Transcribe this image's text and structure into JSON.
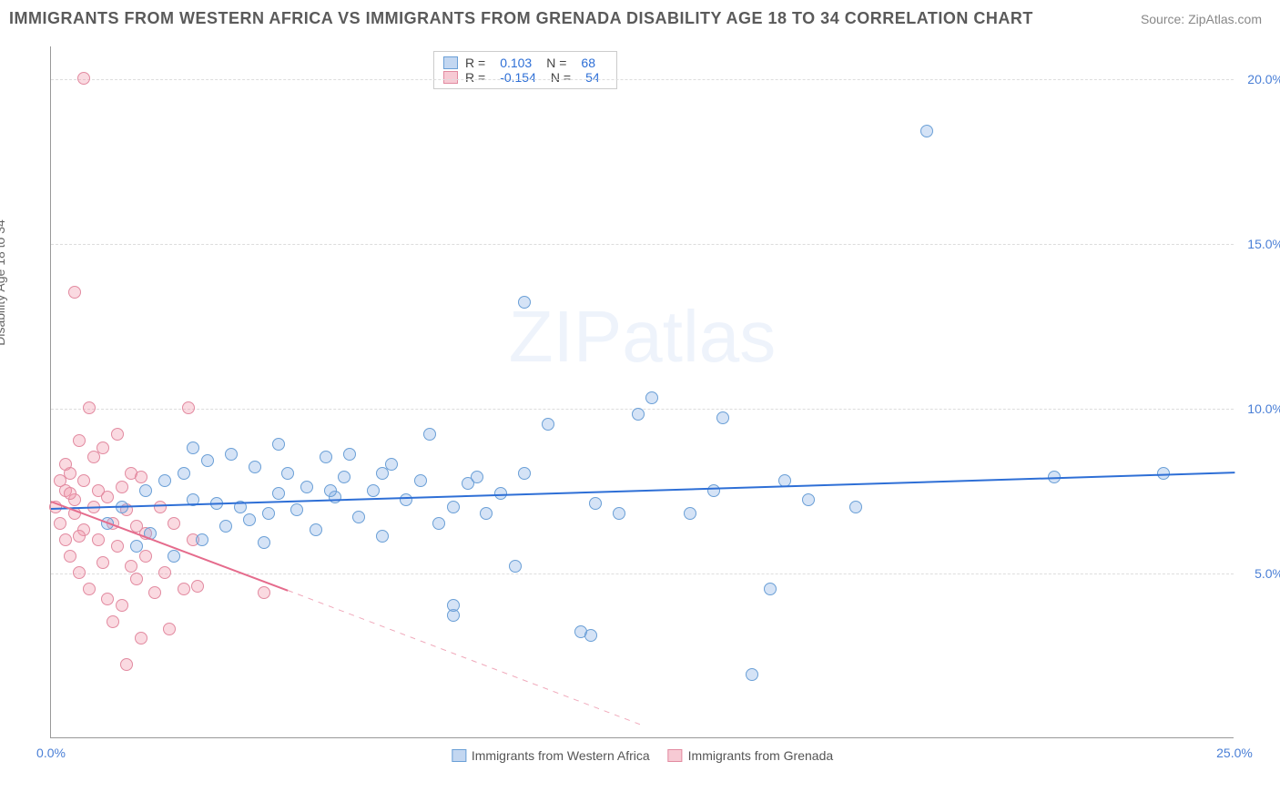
{
  "header": {
    "title": "IMMIGRANTS FROM WESTERN AFRICA VS IMMIGRANTS FROM GRENADA DISABILITY AGE 18 TO 34 CORRELATION CHART",
    "source": "Source: ZipAtlas.com"
  },
  "chart": {
    "type": "scatter",
    "y_axis_label": "Disability Age 18 to 34",
    "watermark": "ZIPatlas",
    "background_color": "#ffffff",
    "grid_color": "#dddddd",
    "axis_color": "#999999",
    "xlim": [
      0,
      25
    ],
    "ylim": [
      0,
      21
    ],
    "y_gridlines": [
      5,
      10,
      15,
      20
    ],
    "y_tick_labels": [
      "5.0%",
      "10.0%",
      "15.0%",
      "20.0%"
    ],
    "x_ticks": [
      0,
      25
    ],
    "x_tick_labels": [
      "0.0%",
      "25.0%"
    ],
    "tick_label_color": "#4a7fd6",
    "tick_fontsize": 14,
    "title_fontsize": 18,
    "title_color": "#5a5a5a",
    "point_radius": 7,
    "series": {
      "blue": {
        "label": "Immigrants from Western Africa",
        "fill": "rgba(135,176,228,0.35)",
        "stroke": "#6a9fd6",
        "trend_color": "#2e6fd6",
        "trend": {
          "x1": 0,
          "y1": 7.0,
          "x2": 25,
          "y2": 8.1
        },
        "R": "0.103",
        "N": "68",
        "points": [
          [
            1.2,
            6.5
          ],
          [
            1.5,
            7.0
          ],
          [
            1.8,
            5.8
          ],
          [
            2.0,
            7.5
          ],
          [
            2.1,
            6.2
          ],
          [
            2.4,
            7.8
          ],
          [
            2.6,
            5.5
          ],
          [
            2.8,
            8.0
          ],
          [
            3.0,
            7.2
          ],
          [
            3.2,
            6.0
          ],
          [
            3.3,
            8.4
          ],
          [
            3.5,
            7.1
          ],
          [
            3.7,
            6.4
          ],
          [
            3.8,
            8.6
          ],
          [
            4.0,
            7.0
          ],
          [
            4.2,
            6.6
          ],
          [
            4.3,
            8.2
          ],
          [
            4.5,
            5.9
          ],
          [
            4.6,
            6.8
          ],
          [
            4.8,
            7.4
          ],
          [
            5.0,
            8.0
          ],
          [
            5.2,
            6.9
          ],
          [
            5.4,
            7.6
          ],
          [
            5.6,
            6.3
          ],
          [
            5.8,
            8.5
          ],
          [
            6.0,
            7.3
          ],
          [
            6.2,
            7.9
          ],
          [
            6.5,
            6.7
          ],
          [
            6.8,
            7.5
          ],
          [
            7.0,
            6.1
          ],
          [
            7.2,
            8.3
          ],
          [
            7.5,
            7.2
          ],
          [
            7.8,
            7.8
          ],
          [
            8.0,
            9.2
          ],
          [
            8.2,
            6.5
          ],
          [
            8.5,
            7.0
          ],
          [
            8.8,
            7.7
          ],
          [
            8.5,
            3.7
          ],
          [
            9.2,
            6.8
          ],
          [
            9.5,
            7.4
          ],
          [
            9.8,
            5.2
          ],
          [
            10.0,
            8.0
          ],
          [
            10.5,
            9.5
          ],
          [
            10.0,
            13.2
          ],
          [
            11.2,
            3.2
          ],
          [
            11.4,
            3.1
          ],
          [
            11.5,
            7.1
          ],
          [
            12.0,
            6.8
          ],
          [
            12.4,
            9.8
          ],
          [
            12.7,
            10.3
          ],
          [
            13.5,
            6.8
          ],
          [
            14.0,
            7.5
          ],
          [
            14.2,
            9.7
          ],
          [
            14.8,
            1.9
          ],
          [
            15.2,
            4.5
          ],
          [
            15.5,
            7.8
          ],
          [
            16.0,
            7.2
          ],
          [
            17.0,
            7.0
          ],
          [
            18.5,
            18.4
          ],
          [
            21.2,
            7.9
          ],
          [
            23.5,
            8.0
          ],
          [
            4.8,
            8.9
          ],
          [
            6.3,
            8.6
          ],
          [
            8.5,
            4.0
          ],
          [
            9.0,
            7.9
          ],
          [
            5.9,
            7.5
          ],
          [
            3.0,
            8.8
          ],
          [
            7.0,
            8.0
          ]
        ]
      },
      "pink": {
        "label": "Immigrants from Grenada",
        "fill": "rgba(240,150,170,0.35)",
        "stroke": "#e28aa0",
        "trend_color_solid": "#e56b8c",
        "trend_color_dashed": "#f0a8ba",
        "trend_solid": {
          "x1": 0,
          "y1": 7.2,
          "x2": 5.0,
          "y2": 4.5
        },
        "trend_dashed": {
          "x1": 5.0,
          "y1": 4.5,
          "x2": 12.5,
          "y2": 0.4
        },
        "R": "-0.154",
        "N": "54",
        "points": [
          [
            0.1,
            7.0
          ],
          [
            0.2,
            6.5
          ],
          [
            0.3,
            7.5
          ],
          [
            0.3,
            6.0
          ],
          [
            0.4,
            8.0
          ],
          [
            0.4,
            5.5
          ],
          [
            0.5,
            7.2
          ],
          [
            0.5,
            6.8
          ],
          [
            0.6,
            9.0
          ],
          [
            0.6,
            5.0
          ],
          [
            0.7,
            7.8
          ],
          [
            0.7,
            6.3
          ],
          [
            0.8,
            10.0
          ],
          [
            0.8,
            4.5
          ],
          [
            0.9,
            7.0
          ],
          [
            0.9,
            8.5
          ],
          [
            1.0,
            6.0
          ],
          [
            1.0,
            7.5
          ],
          [
            1.1,
            5.3
          ],
          [
            1.1,
            8.8
          ],
          [
            1.2,
            4.2
          ],
          [
            1.2,
            7.3
          ],
          [
            1.3,
            6.5
          ],
          [
            1.3,
            3.5
          ],
          [
            1.4,
            9.2
          ],
          [
            1.4,
            5.8
          ],
          [
            1.5,
            7.6
          ],
          [
            1.5,
            4.0
          ],
          [
            1.6,
            6.9
          ],
          [
            1.6,
            2.2
          ],
          [
            1.7,
            8.0
          ],
          [
            1.7,
            5.2
          ],
          [
            1.8,
            6.4
          ],
          [
            1.8,
            4.8
          ],
          [
            1.9,
            7.9
          ],
          [
            1.9,
            3.0
          ],
          [
            2.0,
            6.2
          ],
          [
            2.0,
            5.5
          ],
          [
            2.2,
            4.4
          ],
          [
            2.3,
            7.0
          ],
          [
            2.4,
            5.0
          ],
          [
            2.5,
            3.3
          ],
          [
            2.6,
            6.5
          ],
          [
            2.8,
            4.5
          ],
          [
            2.9,
            10.0
          ],
          [
            3.0,
            6.0
          ],
          [
            3.1,
            4.6
          ],
          [
            4.5,
            4.4
          ],
          [
            0.5,
            13.5
          ],
          [
            0.7,
            20.0
          ],
          [
            0.2,
            7.8
          ],
          [
            0.3,
            8.3
          ],
          [
            0.4,
            7.4
          ],
          [
            0.6,
            6.1
          ]
        ]
      }
    },
    "legend_top": {
      "rows": [
        {
          "series": "blue",
          "R_label": "R =",
          "R": "0.103",
          "N_label": "N =",
          "N": "68"
        },
        {
          "series": "pink",
          "R_label": "R =",
          "R": "-0.154",
          "N_label": "N =",
          "N": "54"
        }
      ]
    },
    "legend_bottom": [
      {
        "series": "blue",
        "label": "Immigrants from Western Africa"
      },
      {
        "series": "pink",
        "label": "Immigrants from Grenada"
      }
    ]
  }
}
